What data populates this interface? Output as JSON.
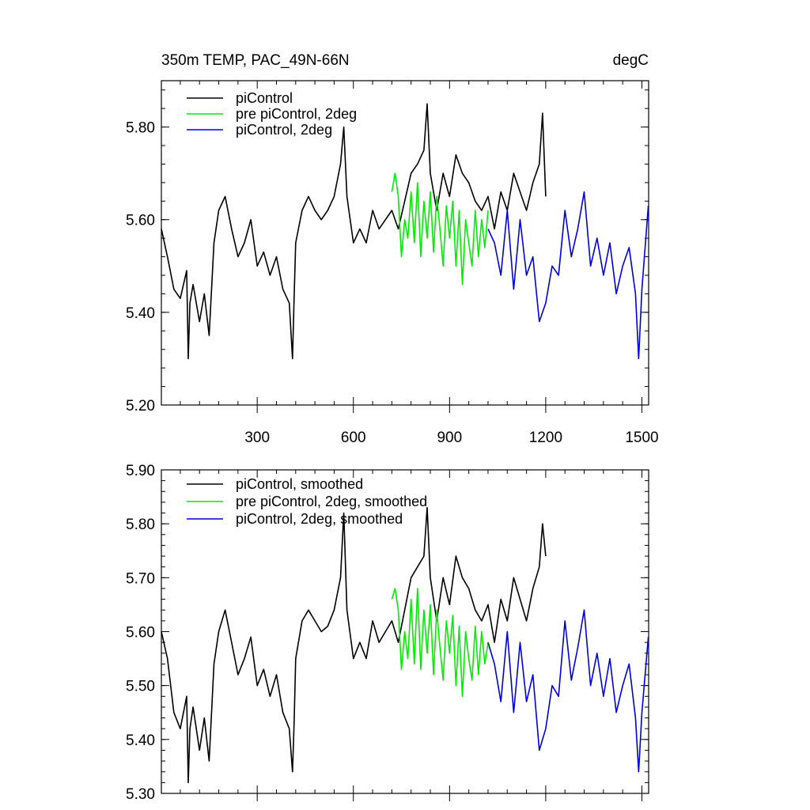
{
  "header": {
    "title": "350m TEMP, PAC_49N-66N",
    "units": "degC"
  },
  "colors": {
    "piControl": "#000000",
    "pre_piControl_2deg": "#00ee00",
    "piControl_2deg": "#0000dd"
  },
  "chart_data": [
    {
      "type": "line",
      "title": "350m TEMP, PAC_49N-66N",
      "units": "degC",
      "xlim": [
        1,
        1521
      ],
      "ylim": [
        5.2,
        5.9
      ],
      "x_ticks": [
        300,
        600,
        900,
        1200,
        1500
      ],
      "x_tick_labels": [
        "300",
        "600",
        "900",
        "1200",
        "1500"
      ],
      "y_ticks": [
        5.2,
        5.4,
        5.6,
        5.8
      ],
      "y_tick_labels": [
        "5.20",
        "5.40",
        "5.60",
        "5.80"
      ],
      "legend_position": "top-left",
      "series": [
        {
          "name": "piControl",
          "color": "#000000",
          "x": [
            1,
            20,
            40,
            60,
            80,
            85,
            90,
            100,
            120,
            135,
            150,
            165,
            180,
            200,
            220,
            240,
            260,
            280,
            300,
            320,
            340,
            360,
            380,
            400,
            410,
            415,
            420,
            440,
            460,
            480,
            500,
            520,
            540,
            560,
            570,
            580,
            600,
            620,
            640,
            660,
            680,
            700,
            720,
            740,
            760,
            780,
            800,
            820,
            830,
            840,
            860,
            880,
            900,
            920,
            940,
            960,
            980,
            1000,
            1020,
            1040,
            1060,
            1080,
            1100,
            1120,
            1140,
            1160,
            1180,
            1190,
            1200
          ],
          "y": [
            5.58,
            5.52,
            5.45,
            5.43,
            5.49,
            5.3,
            5.42,
            5.46,
            5.38,
            5.44,
            5.35,
            5.55,
            5.62,
            5.65,
            5.58,
            5.52,
            5.55,
            5.6,
            5.5,
            5.53,
            5.48,
            5.52,
            5.45,
            5.42,
            5.3,
            5.43,
            5.55,
            5.62,
            5.65,
            5.62,
            5.6,
            5.62,
            5.65,
            5.72,
            5.8,
            5.65,
            5.55,
            5.58,
            5.55,
            5.62,
            5.58,
            5.6,
            5.62,
            5.58,
            5.64,
            5.7,
            5.72,
            5.75,
            5.85,
            5.7,
            5.62,
            5.7,
            5.65,
            5.74,
            5.7,
            5.68,
            5.64,
            5.62,
            5.65,
            5.58,
            5.66,
            5.62,
            5.7,
            5.66,
            5.62,
            5.68,
            5.72,
            5.83,
            5.65
          ]
        },
        {
          "name": "pre piControl, 2deg",
          "color": "#00ee00",
          "x": [
            720,
            730,
            740,
            750,
            760,
            770,
            780,
            790,
            800,
            810,
            820,
            830,
            840,
            850,
            860,
            870,
            880,
            890,
            900,
            910,
            920,
            930,
            940,
            950,
            960,
            970,
            980,
            990,
            1000,
            1010,
            1020
          ],
          "y": [
            5.66,
            5.7,
            5.65,
            5.52,
            5.6,
            5.56,
            5.66,
            5.55,
            5.68,
            5.52,
            5.64,
            5.56,
            5.66,
            5.53,
            5.65,
            5.58,
            5.5,
            5.63,
            5.56,
            5.64,
            5.5,
            5.62,
            5.46,
            5.6,
            5.55,
            5.5,
            5.62,
            5.52,
            5.6,
            5.54,
            5.62
          ]
        },
        {
          "name": "piControl, 2deg",
          "color": "#0000dd",
          "x": [
            1020,
            1040,
            1060,
            1080,
            1100,
            1120,
            1140,
            1160,
            1180,
            1200,
            1220,
            1240,
            1260,
            1280,
            1300,
            1320,
            1340,
            1360,
            1380,
            1400,
            1420,
            1440,
            1460,
            1480,
            1490,
            1500,
            1520
          ],
          "y": [
            5.58,
            5.55,
            5.48,
            5.62,
            5.45,
            5.6,
            5.48,
            5.52,
            5.38,
            5.42,
            5.5,
            5.48,
            5.62,
            5.52,
            5.58,
            5.66,
            5.5,
            5.56,
            5.48,
            5.55,
            5.44,
            5.5,
            5.54,
            5.44,
            5.3,
            5.45,
            5.63
          ]
        }
      ]
    },
    {
      "type": "line",
      "xlim": [
        1,
        1521
      ],
      "ylim": [
        5.3,
        5.9
      ],
      "x_ticks": [
        300,
        600,
        900,
        1200,
        1500
      ],
      "y_ticks": [
        5.3,
        5.4,
        5.5,
        5.6,
        5.7,
        5.8,
        5.9
      ],
      "y_tick_labels": [
        "5.30",
        "5.40",
        "5.50",
        "5.60",
        "5.70",
        "5.80",
        "5.90"
      ],
      "legend_position": "top-left",
      "series": [
        {
          "name": "piControl, smoothed",
          "color": "#000000",
          "x": [
            1,
            20,
            40,
            60,
            80,
            85,
            90,
            100,
            120,
            135,
            150,
            165,
            180,
            200,
            220,
            240,
            260,
            280,
            300,
            320,
            340,
            360,
            380,
            400,
            410,
            415,
            420,
            440,
            460,
            480,
            500,
            520,
            540,
            560,
            570,
            580,
            600,
            620,
            640,
            660,
            680,
            700,
            720,
            740,
            760,
            780,
            800,
            820,
            830,
            840,
            860,
            880,
            900,
            920,
            940,
            960,
            980,
            1000,
            1020,
            1040,
            1060,
            1080,
            1100,
            1120,
            1140,
            1160,
            1180,
            1190,
            1200
          ],
          "y": [
            5.6,
            5.55,
            5.45,
            5.42,
            5.48,
            5.32,
            5.42,
            5.46,
            5.38,
            5.44,
            5.36,
            5.54,
            5.6,
            5.64,
            5.58,
            5.52,
            5.55,
            5.59,
            5.5,
            5.53,
            5.48,
            5.52,
            5.45,
            5.42,
            5.34,
            5.43,
            5.55,
            5.62,
            5.64,
            5.62,
            5.6,
            5.61,
            5.64,
            5.7,
            5.82,
            5.64,
            5.55,
            5.58,
            5.55,
            5.62,
            5.58,
            5.6,
            5.62,
            5.58,
            5.64,
            5.7,
            5.72,
            5.74,
            5.83,
            5.7,
            5.62,
            5.7,
            5.65,
            5.74,
            5.7,
            5.68,
            5.64,
            5.62,
            5.65,
            5.58,
            5.66,
            5.62,
            5.7,
            5.66,
            5.62,
            5.68,
            5.72,
            5.8,
            5.74
          ]
        },
        {
          "name": "pre piControl, 2deg, smoothed",
          "color": "#00ee00",
          "x": [
            720,
            730,
            740,
            750,
            760,
            770,
            780,
            790,
            800,
            810,
            820,
            830,
            840,
            850,
            860,
            870,
            880,
            890,
            900,
            910,
            920,
            930,
            940,
            950,
            960,
            970,
            980,
            990,
            1000,
            1010,
            1020
          ],
          "y": [
            5.66,
            5.68,
            5.64,
            5.53,
            5.6,
            5.55,
            5.66,
            5.54,
            5.68,
            5.53,
            5.64,
            5.56,
            5.65,
            5.52,
            5.64,
            5.57,
            5.51,
            5.62,
            5.56,
            5.63,
            5.5,
            5.61,
            5.48,
            5.6,
            5.55,
            5.51,
            5.61,
            5.52,
            5.6,
            5.54,
            5.58
          ]
        },
        {
          "name": "piControl, 2deg, smoothed",
          "color": "#0000dd",
          "x": [
            1020,
            1040,
            1060,
            1080,
            1100,
            1120,
            1140,
            1160,
            1180,
            1200,
            1220,
            1240,
            1260,
            1280,
            1300,
            1320,
            1340,
            1360,
            1380,
            1400,
            1420,
            1440,
            1460,
            1480,
            1490,
            1500,
            1520
          ],
          "y": [
            5.58,
            5.54,
            5.47,
            5.6,
            5.45,
            5.58,
            5.47,
            5.52,
            5.38,
            5.42,
            5.5,
            5.48,
            5.62,
            5.51,
            5.57,
            5.64,
            5.5,
            5.56,
            5.48,
            5.55,
            5.45,
            5.5,
            5.54,
            5.44,
            5.34,
            5.45,
            5.59
          ]
        }
      ]
    }
  ]
}
